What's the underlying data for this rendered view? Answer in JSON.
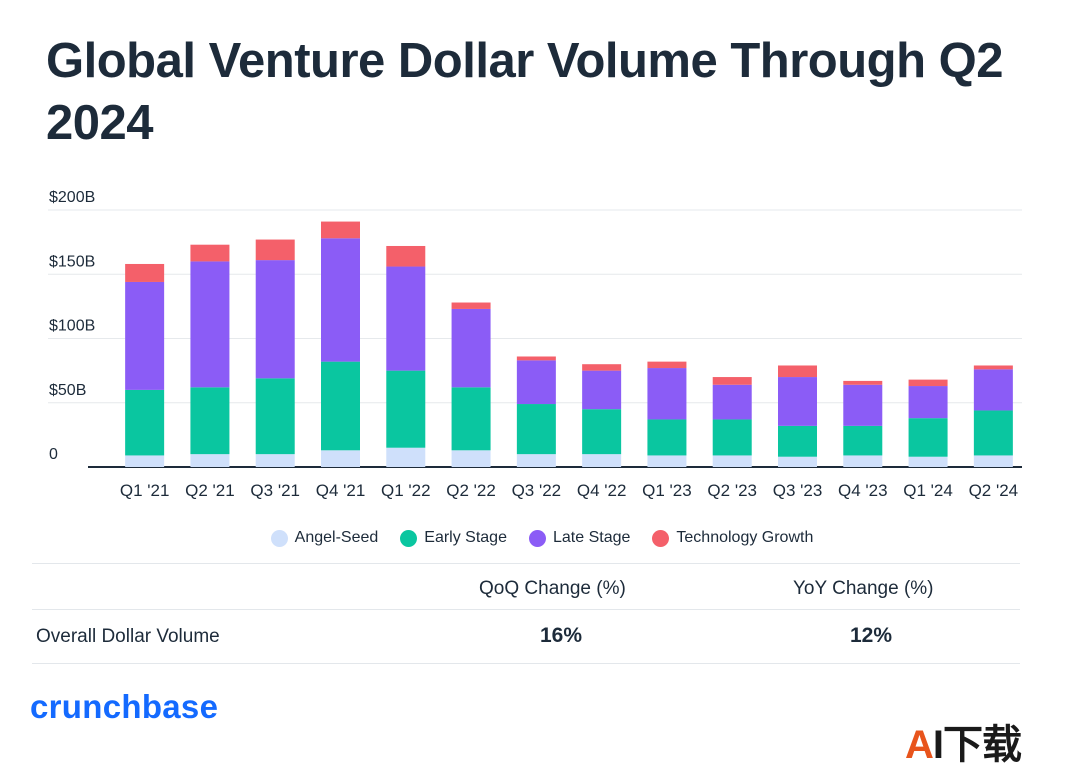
{
  "header": {
    "title": "Global Venture Dollar Volume Through Q2 2024"
  },
  "colors": {
    "angel_seed": "#cfe0fb",
    "early_stage": "#0ac6a0",
    "late_stage": "#8b5cf6",
    "technology_growth": "#f4606a",
    "grid": "#e6e9ec"
  },
  "chart_data": {
    "type": "bar",
    "stacked": true,
    "title": "Global Venture Dollar Volume Through Q2 2024",
    "categories": [
      "Q1 '21",
      "Q2 '21",
      "Q3 '21",
      "Q4 '21",
      "Q1 '22",
      "Q2 '22",
      "Q3 '22",
      "Q4 '22",
      "Q1 '23",
      "Q2 '23",
      "Q3 '23",
      "Q4 '23",
      "Q1 '24",
      "Q2 '24"
    ],
    "series": [
      {
        "name": "Angel-Seed",
        "color": "#cfe0fb",
        "values": [
          9,
          10,
          10,
          13,
          15,
          13,
          10,
          10,
          9,
          9,
          8,
          9,
          8,
          9
        ]
      },
      {
        "name": "Early Stage",
        "color": "#0ac6a0",
        "values": [
          51,
          52,
          59,
          69,
          60,
          49,
          39,
          35,
          28,
          28,
          24,
          23,
          30,
          35
        ]
      },
      {
        "name": "Late Stage",
        "color": "#8b5cf6",
        "values": [
          84,
          98,
          92,
          96,
          81,
          61,
          34,
          30,
          40,
          27,
          38,
          32,
          25,
          32
        ]
      },
      {
        "name": "Technology Growth",
        "color": "#f4606a",
        "values": [
          14,
          13,
          16,
          13,
          16,
          5,
          3,
          5,
          5,
          6,
          9,
          3,
          5,
          3
        ]
      }
    ],
    "ylim": [
      0,
      200
    ],
    "yticks": [
      0,
      50,
      100,
      150,
      200
    ],
    "ytick_labels": [
      "0",
      "$50B",
      "$100B",
      "$150B",
      "$200B"
    ],
    "xlabel": "",
    "ylabel": "",
    "grid": true,
    "legend_position": "bottom-center"
  },
  "legend": [
    {
      "label": "Angel-Seed",
      "color": "#cfe0fb"
    },
    {
      "label": "Early Stage",
      "color": "#0ac6a0"
    },
    {
      "label": "Late Stage",
      "color": "#8b5cf6"
    },
    {
      "label": "Technology Growth",
      "color": "#f4606a"
    }
  ],
  "table": {
    "headers": {
      "qoq": "QoQ Change (%)",
      "yoy": "YoY Change (%)"
    },
    "row": {
      "label": "Overall Dollar Volume",
      "qoq": "16%",
      "yoy": "12%"
    }
  },
  "footer": {
    "brand": "crunchbase",
    "watermark_a": "A",
    "watermark_rest": "I下载"
  }
}
